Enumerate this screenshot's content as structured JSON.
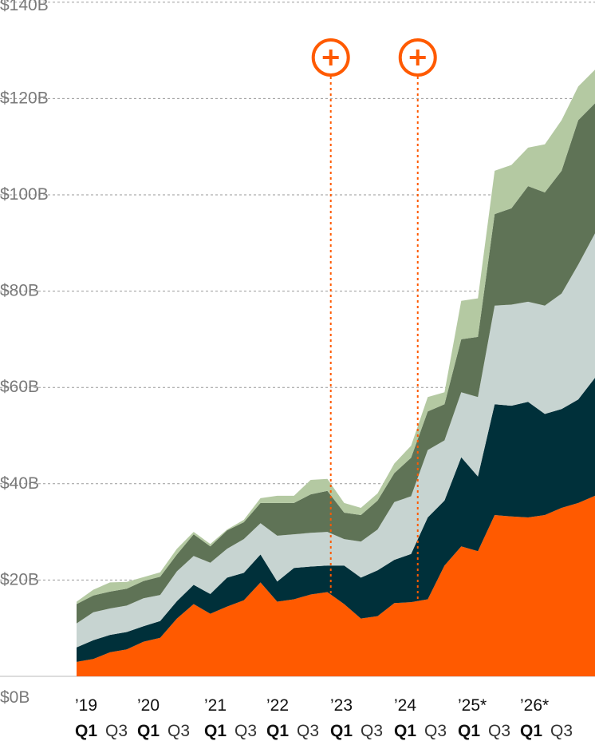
{
  "chart_data": {
    "type": "area",
    "stacked": true,
    "y_ticks": [
      "$0B",
      "$20B",
      "$40B",
      "$60B",
      "$80B",
      "$100B",
      "$120B",
      "$140B"
    ],
    "ylim": [
      0,
      140
    ],
    "grid": true,
    "x_year_labels": [
      "’19",
      "’20",
      "’21",
      "’22",
      "’23",
      "’24",
      "’25*",
      "’26*"
    ],
    "x_quarter_labels": [
      {
        "q1": "Q1",
        "q3": "Q3"
      },
      {
        "q1": "Q1",
        "q3": "Q3"
      },
      {
        "q1": "Q1",
        "q3": "Q3"
      },
      {
        "q1": "Q1",
        "q3": "Q3"
      },
      {
        "q1": "Q1",
        "q3": "Q3"
      },
      {
        "q1": "Q1",
        "q3": "Q3"
      },
      {
        "q1": "Q1",
        "q3": "Q3"
      },
      {
        "q1": "Q1",
        "q3": "Q3"
      }
    ],
    "x": [
      2019.0,
      2019.25,
      2019.5,
      2019.75,
      2020.0,
      2020.25,
      2020.5,
      2020.75,
      2021.0,
      2021.25,
      2021.5,
      2021.75,
      2022.0,
      2022.25,
      2022.5,
      2022.75,
      2023.0,
      2023.25,
      2023.5,
      2023.75,
      2024.0,
      2024.25,
      2024.5,
      2024.75,
      2025.0,
      2025.25,
      2025.5,
      2025.75,
      2026.0,
      2026.25,
      2026.5,
      2026.75
    ],
    "series": [
      {
        "color": "#ff5a00",
        "values": [
          3.0,
          3.6,
          5.0,
          5.6,
          7.2,
          8.0,
          12.0,
          15.0,
          13.0,
          14.5,
          15.8,
          19.5,
          15.5,
          16.0,
          17.0,
          17.5,
          15.0,
          12.0,
          12.5,
          15.2,
          15.4,
          16.0,
          23.0,
          27.0,
          26.0,
          33.5,
          33.2,
          33.0,
          33.5,
          35.0,
          36.0,
          37.5
        ]
      },
      {
        "color": "#00303a",
        "values": [
          3.0,
          3.9,
          3.6,
          3.6,
          3.2,
          3.5,
          3.6,
          4.0,
          4.1,
          6.0,
          5.7,
          5.8,
          4.2,
          6.5,
          5.8,
          5.5,
          8.0,
          8.5,
          9.5,
          9.0,
          10.0,
          17.0,
          13.5,
          18.5,
          15.5,
          23.0,
          23.0,
          24.0,
          21.0,
          20.5,
          21.5,
          24.5
        ]
      },
      {
        "color": "#c7d4d1",
        "values": [
          5.0,
          5.8,
          5.5,
          5.5,
          5.8,
          5.4,
          6.2,
          6.0,
          6.5,
          6.0,
          7.0,
          6.5,
          9.5,
          7.0,
          7.0,
          7.0,
          5.5,
          7.5,
          8.5,
          12.0,
          12.0,
          14.0,
          12.5,
          13.5,
          16.5,
          20.5,
          21.0,
          20.8,
          22.5,
          24.0,
          28.0,
          30.0
        ]
      },
      {
        "color": "#5f7356",
        "values": [
          4.0,
          3.5,
          3.5,
          3.5,
          3.6,
          3.8,
          3.5,
          4.5,
          3.4,
          3.8,
          3.5,
          4.2,
          6.8,
          6.5,
          8.0,
          8.5,
          5.5,
          5.5,
          6.0,
          6.0,
          8.0,
          8.0,
          7.5,
          11.0,
          12.5,
          19.0,
          20.0,
          24.0,
          23.5,
          25.5,
          30.0,
          27.0
        ]
      },
      {
        "color": "#b4c9a2",
        "values": [
          0.5,
          1.2,
          1.9,
          1.4,
          0.8,
          0.9,
          1.2,
          0.5,
          0.5,
          0.2,
          0.5,
          1.0,
          1.5,
          1.5,
          3.0,
          2.5,
          2.0,
          1.5,
          1.5,
          2.0,
          2.5,
          3.0,
          2.5,
          8.0,
          8.0,
          9.0,
          9.0,
          8.0,
          10.0,
          10.5,
          7.0,
          7.0
        ]
      }
    ],
    "annotation_markers": [
      {
        "x": 2022.8,
        "symbol": "+",
        "color": "#ff5a00"
      },
      {
        "x": 2024.1,
        "symbol": "+",
        "color": "#ff5a00"
      }
    ]
  }
}
